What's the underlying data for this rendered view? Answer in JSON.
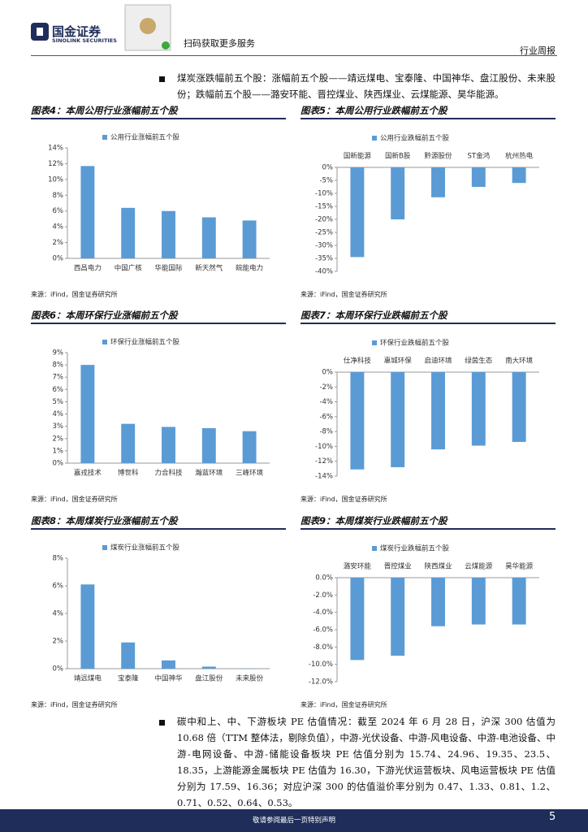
{
  "header": {
    "brand": "国金证券",
    "brand_en": "SINOLINK SECURITIES",
    "qr_caption": "扫码获取更多服务",
    "report_type": "行业周报"
  },
  "paragraphs": [
    "煤炭涨跌幅前五个股：涨幅前五个股——靖远煤电、宝泰隆、中国神华、盘江股份、未来股份；跌幅前五个股——潞安环能、晋控煤业、陕西煤业、云煤能源、昊华能源。",
    "碳中和上、中、下游板块 PE 估值情况：截至 2024 年 6 月 28 日，沪深 300 估值为 10.68 倍（TTM 整体法，剔除负值），中游-光伏设备、中游-风电设备、中游-电池设备、中游-电网设备、中游-储能设备板块 PE 估值分别为 15.74、24.96、19.35、23.5、18.35，上游能源金属板块 PE 估值为 16.30，下游光伏运营板块、风电运营板块 PE 估值分别为 17.59、16.36；对应沪深 300 的估值溢价率分别为 0.47、1.33、0.81、1.2、0.71、0.52、0.64、0.53。"
  ],
  "chart_data": [
    {
      "type": "bar",
      "title": "图表4：本周公用行业涨幅前五个股",
      "source": "来源：iFind，国金证券研究所",
      "categories": [
        "西昌电力",
        "中国广核",
        "华能国际",
        "新天然气",
        "皖能电力"
      ],
      "series": [
        {
          "name": "公用行业涨幅前五个股",
          "color": "#5b9bd5",
          "values": [
            11.7,
            6.4,
            6.0,
            5.2,
            4.8
          ]
        }
      ],
      "ylim": [
        0,
        14
      ],
      "grid": false,
      "yticks": [
        {
          "value": 0,
          "label": "0%"
        },
        {
          "value": 2,
          "label": "2%"
        },
        {
          "value": 4,
          "label": "4%"
        },
        {
          "value": 6,
          "label": "6%"
        },
        {
          "value": 8,
          "label": "8%"
        },
        {
          "value": 10,
          "label": "10%"
        },
        {
          "value": 12,
          "label": "12%"
        },
        {
          "value": 14,
          "label": "14%"
        }
      ]
    },
    {
      "type": "bar",
      "title": "图表5：本周公用行业跌幅前五个股",
      "source": "来源：iFind，国金证券研究所",
      "categories": [
        "国新能源",
        "国新B股",
        "黔源股份",
        "ST金鸿",
        "杭州热电"
      ],
      "series": [
        {
          "name": "公用行业跌幅前五个股",
          "color": "#5b9bd5",
          "values": [
            -34.5,
            -20.0,
            -11.5,
            -7.5,
            -6.0
          ]
        }
      ],
      "ylim": [
        -40,
        0
      ],
      "grid": false,
      "yticks": [
        {
          "value": 0,
          "label": "0%"
        },
        {
          "value": -5,
          "label": "-5%"
        },
        {
          "value": -10,
          "label": "-10%"
        },
        {
          "value": -15,
          "label": "-15%"
        },
        {
          "value": -20,
          "label": "-20%"
        },
        {
          "value": -25,
          "label": "-25%"
        },
        {
          "value": -30,
          "label": "-30%"
        },
        {
          "value": -35,
          "label": "-35%"
        },
        {
          "value": -40,
          "label": "-40%"
        }
      ]
    },
    {
      "type": "bar",
      "title": "图表6：本周环保行业涨幅前五个股",
      "source": "来源：iFind，国金证券研究所",
      "categories": [
        "嘉戎技术",
        "博世科",
        "力合科技",
        "瀚蓝环境",
        "三峰环境"
      ],
      "series": [
        {
          "name": "环保行业涨幅前五个股",
          "color": "#5b9bd5",
          "values": [
            8.0,
            3.2,
            2.95,
            2.85,
            2.6
          ]
        }
      ],
      "ylim": [
        0,
        9
      ],
      "grid": false,
      "yticks": [
        {
          "value": 0,
          "label": "0%"
        },
        {
          "value": 1,
          "label": "1%"
        },
        {
          "value": 2,
          "label": "2%"
        },
        {
          "value": 3,
          "label": "3%"
        },
        {
          "value": 4,
          "label": "4%"
        },
        {
          "value": 5,
          "label": "5%"
        },
        {
          "value": 6,
          "label": "6%"
        },
        {
          "value": 7,
          "label": "7%"
        },
        {
          "value": 8,
          "label": "8%"
        },
        {
          "value": 9,
          "label": "9%"
        }
      ]
    },
    {
      "type": "bar",
      "title": "图表7：本周环保行业跌幅前五个股",
      "source": "来源：iFind，国金证券研究所",
      "categories": [
        "仕净科技",
        "惠城环保",
        "启迪环境",
        "绿茵生态",
        "南大环境"
      ],
      "series": [
        {
          "name": "环保行业跌幅前五个股",
          "color": "#5b9bd5",
          "values": [
            -13.1,
            -12.8,
            -10.4,
            -9.9,
            -9.4
          ]
        }
      ],
      "ylim": [
        -14,
        0
      ],
      "grid": false,
      "yticks": [
        {
          "value": 0,
          "label": "0%"
        },
        {
          "value": -2,
          "label": "-2%"
        },
        {
          "value": -4,
          "label": "-4%"
        },
        {
          "value": -6,
          "label": "-6%"
        },
        {
          "value": -8,
          "label": "-8%"
        },
        {
          "value": -10,
          "label": "-10%"
        },
        {
          "value": -12,
          "label": "-12%"
        },
        {
          "value": -14,
          "label": "-14%"
        }
      ]
    },
    {
      "type": "bar",
      "title": "图表8：本周煤炭行业涨幅前五个股",
      "source": "来源：iFind，国金证券研究所",
      "categories": [
        "靖远煤电",
        "宝泰隆",
        "中国神华",
        "盘江股份",
        "未来股份"
      ],
      "series": [
        {
          "name": "煤炭行业涨幅前五个股",
          "color": "#5b9bd5",
          "values": [
            6.1,
            1.9,
            0.6,
            0.15,
            0.02
          ]
        }
      ],
      "ylim": [
        0,
        8
      ],
      "grid": false,
      "yticks": [
        {
          "value": 0,
          "label": "0%"
        },
        {
          "value": 2,
          "label": "2%"
        },
        {
          "value": 4,
          "label": "4%"
        },
        {
          "value": 6,
          "label": "6%"
        },
        {
          "value": 8,
          "label": "8%"
        }
      ]
    },
    {
      "type": "bar",
      "title": "图表9：本周煤炭行业跌幅前五个股",
      "source": "来源：iFind，国金证券研究所",
      "categories": [
        "潞安环能",
        "晋控煤业",
        "陕西煤业",
        "云煤能源",
        "昊华能源"
      ],
      "series": [
        {
          "name": "煤炭行业跌幅前五个股",
          "color": "#5b9bd5",
          "values": [
            -9.5,
            -9.0,
            -5.6,
            -5.4,
            -5.4
          ]
        }
      ],
      "ylim": [
        -12,
        0
      ],
      "grid": false,
      "yticks": [
        {
          "value": 0,
          "label": "0.0%"
        },
        {
          "value": -2,
          "label": "-2.0%"
        },
        {
          "value": -4,
          "label": "-4.0%"
        },
        {
          "value": -6,
          "label": "-6.0%"
        },
        {
          "value": -8,
          "label": "-8.0%"
        },
        {
          "value": -10,
          "label": "-10.0%"
        },
        {
          "value": -12,
          "label": "-12.0%"
        }
      ]
    }
  ],
  "footer": {
    "disclaimer": "敬请参阅最后一页特别声明",
    "page_number": 5
  }
}
